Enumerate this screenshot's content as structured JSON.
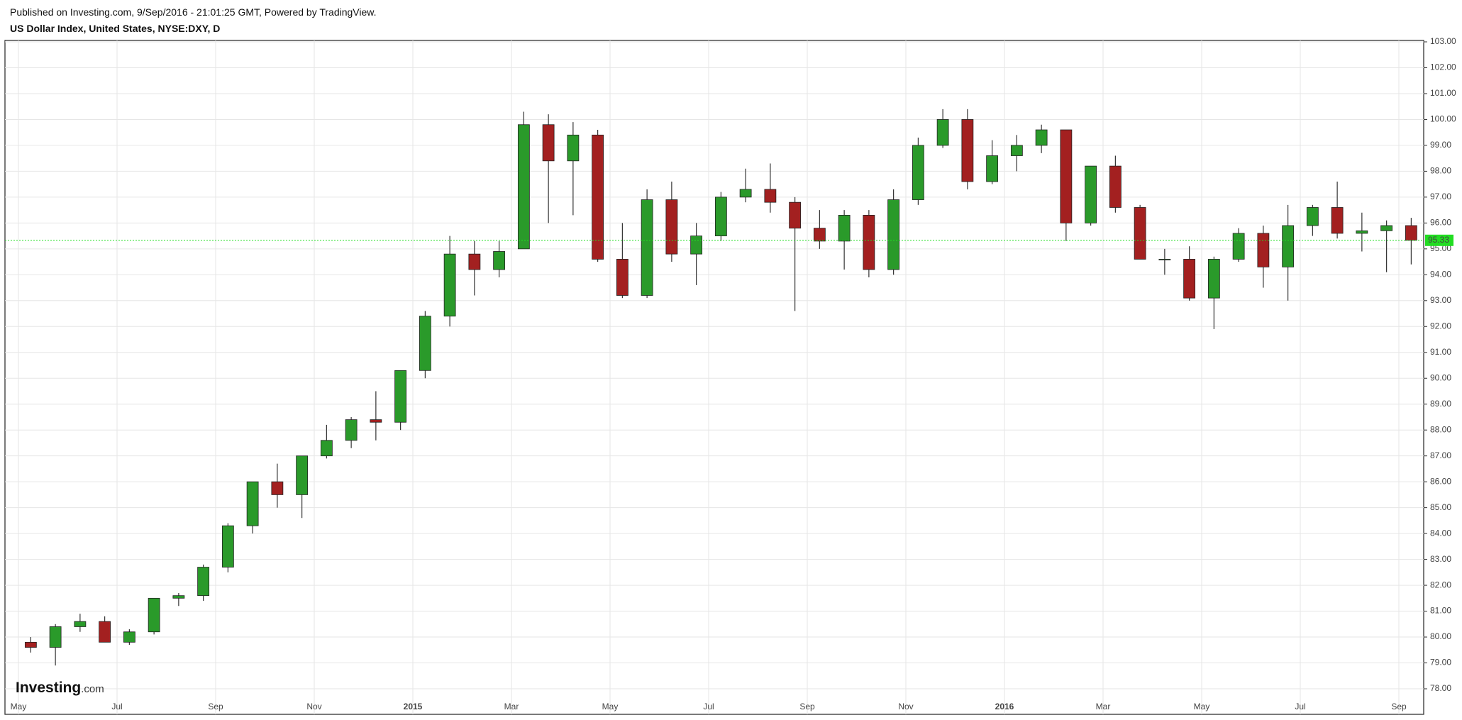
{
  "header": {
    "published": "Published on Investing.com, 9/Sep/2016 - 21:01:25 GMT, Powered by TradingView.",
    "symbol": "US Dollar Index, United States, NYSE:DXY, D"
  },
  "logo": {
    "brand": "Investing",
    "suffix": ".com"
  },
  "chart_data": {
    "type": "candlestick",
    "categories": [
      "May",
      null,
      null,
      null,
      "Jul",
      null,
      null,
      null,
      "Sep",
      null,
      null,
      null,
      "Nov",
      null,
      null,
      null,
      "2015",
      null,
      null,
      null,
      "Mar",
      null,
      null,
      null,
      "May",
      null,
      null,
      null,
      "Jul",
      null,
      null,
      null,
      "Sep",
      null,
      null,
      null,
      "Nov",
      null,
      null,
      null,
      "2016",
      null,
      null,
      null,
      "Mar",
      null,
      null,
      null,
      "May",
      null,
      null,
      null,
      "Jul",
      null,
      null,
      null,
      "Sep"
    ],
    "open": [
      79.8,
      79.6,
      80.4,
      80.6,
      79.8,
      80.2,
      81.5,
      81.6,
      82.7,
      84.3,
      86.0,
      85.5,
      87.0,
      87.6,
      88.4,
      88.3,
      90.3,
      92.4,
      94.8,
      94.2,
      95.0,
      99.8,
      98.4,
      99.4,
      94.6,
      93.2,
      96.9,
      94.8,
      95.5,
      97.0,
      97.3,
      96.8,
      95.8,
      95.3,
      96.3,
      94.2,
      96.9,
      99.0,
      100.0,
      97.6,
      98.6,
      99.0,
      99.6,
      96.0,
      98.2,
      96.6,
      94.6,
      94.6,
      93.1,
      94.6,
      95.6,
      94.3,
      95.9,
      96.6,
      95.6,
      95.7,
      95.9
    ],
    "high": [
      80.0,
      80.5,
      80.9,
      80.8,
      80.3,
      81.5,
      81.7,
      82.8,
      84.4,
      86.0,
      86.7,
      87.0,
      88.2,
      88.5,
      89.5,
      90.3,
      92.6,
      95.5,
      95.3,
      95.3,
      100.3,
      100.2,
      99.9,
      99.6,
      96.0,
      97.3,
      97.6,
      96.0,
      97.2,
      98.1,
      98.3,
      97.0,
      96.5,
      96.5,
      96.5,
      97.3,
      99.3,
      100.4,
      100.4,
      99.2,
      99.4,
      99.8,
      99.6,
      98.2,
      98.6,
      96.7,
      95.0,
      95.1,
      94.7,
      95.8,
      95.9,
      96.7,
      96.7,
      97.6,
      96.4,
      96.1,
      96.2
    ],
    "low": [
      79.4,
      78.9,
      80.2,
      79.8,
      79.7,
      80.1,
      81.2,
      81.4,
      82.5,
      84.0,
      85.0,
      84.6,
      86.9,
      87.3,
      87.6,
      88.0,
      90.0,
      92.0,
      93.2,
      93.9,
      95.0,
      96.0,
      96.3,
      94.5,
      93.1,
      93.1,
      94.5,
      93.6,
      95.3,
      96.8,
      96.4,
      92.6,
      95.0,
      94.2,
      93.9,
      94.0,
      96.7,
      98.9,
      97.3,
      97.5,
      98.0,
      98.7,
      95.3,
      95.9,
      96.4,
      94.6,
      94.0,
      93.0,
      91.9,
      94.5,
      93.5,
      93.0,
      95.5,
      95.4,
      94.9,
      94.1,
      94.4
    ],
    "close": [
      79.6,
      80.4,
      80.6,
      79.8,
      80.2,
      81.5,
      81.6,
      82.7,
      84.3,
      86.0,
      85.5,
      87.0,
      87.6,
      88.4,
      88.3,
      90.3,
      92.4,
      94.8,
      94.2,
      94.9,
      99.8,
      98.4,
      99.4,
      94.6,
      93.2,
      96.9,
      94.8,
      95.5,
      97.0,
      97.3,
      96.8,
      95.8,
      95.3,
      96.3,
      94.2,
      96.9,
      99.0,
      100.0,
      97.6,
      98.6,
      99.0,
      99.6,
      96.0,
      98.2,
      96.6,
      94.6,
      94.6,
      93.1,
      94.6,
      95.6,
      94.3,
      95.9,
      96.6,
      95.6,
      95.7,
      95.9,
      95.33
    ],
    "up_color": "#2a9a2a",
    "down_color": "#a32020",
    "last_price": 95.33,
    "last_price_color": "#22dd22",
    "ylim": [
      78,
      103
    ],
    "yticks": [
      {
        "value": 78,
        "label": "78.00"
      },
      {
        "value": 79,
        "label": "79.00"
      },
      {
        "value": 80,
        "label": "80.00"
      },
      {
        "value": 81,
        "label": "81.00"
      },
      {
        "value": 82,
        "label": "82.00"
      },
      {
        "value": 83,
        "label": "83.00"
      },
      {
        "value": 84,
        "label": "84.00"
      },
      {
        "value": 85,
        "label": "85.00"
      },
      {
        "value": 86,
        "label": "86.00"
      },
      {
        "value": 87,
        "label": "87.00"
      },
      {
        "value": 88,
        "label": "88.00"
      },
      {
        "value": 89,
        "label": "89.00"
      },
      {
        "value": 90,
        "label": "90.00"
      },
      {
        "value": 91,
        "label": "91.00"
      },
      {
        "value": 92,
        "label": "92.00"
      },
      {
        "value": 93,
        "label": "93.00"
      },
      {
        "value": 94,
        "label": "94.00"
      },
      {
        "value": 95,
        "label": "95.00"
      },
      {
        "value": 96,
        "label": "96.00"
      },
      {
        "value": 97,
        "label": "97.00"
      },
      {
        "value": 98,
        "label": "98.00"
      },
      {
        "value": 99,
        "label": "99.00"
      },
      {
        "value": 100,
        "label": "100.00"
      },
      {
        "value": 101,
        "label": "101.00"
      },
      {
        "value": 102,
        "label": "102.00"
      },
      {
        "value": 103,
        "label": "103.00"
      }
    ],
    "grid": true
  }
}
